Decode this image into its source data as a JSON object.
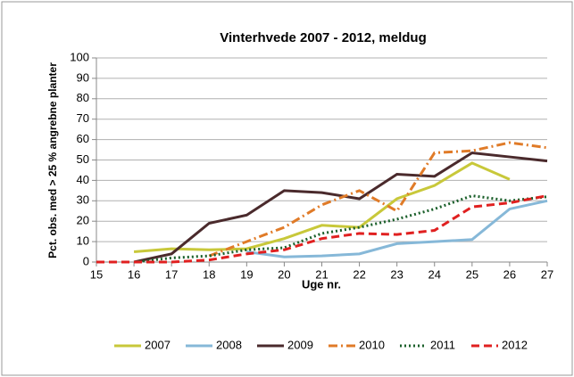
{
  "chart_data": {
    "type": "line",
    "title": "Vinterhvede 2007 - 2012, meldug",
    "x_label": "Uge nr.",
    "y_label": "Pct. obs. med > 25 % angrebne planter",
    "x": [
      15,
      16,
      17,
      18,
      19,
      20,
      21,
      22,
      23,
      24,
      25,
      26,
      27
    ],
    "xlim": [
      15,
      27
    ],
    "xticks": [
      15,
      16,
      17,
      18,
      19,
      20,
      21,
      22,
      23,
      24,
      25,
      26,
      27
    ],
    "ylim": [
      0,
      100
    ],
    "yticks": [
      0,
      10,
      20,
      30,
      40,
      50,
      60,
      70,
      80,
      90,
      100
    ],
    "grid": true,
    "legend": "bottom",
    "series": [
      {
        "name": "2007",
        "color": "#c8c83a",
        "dash": "solid",
        "values": [
          null,
          5,
          6.5,
          6,
          6.5,
          11.5,
          18,
          17,
          31,
          37.5,
          48.5,
          40.5,
          null
        ]
      },
      {
        "name": "2008",
        "color": "#86b8d8",
        "dash": "solid",
        "values": [
          null,
          null,
          null,
          null,
          5,
          2.5,
          3,
          4,
          9,
          10,
          11,
          26,
          30
        ]
      },
      {
        "name": "2009",
        "color": "#4a2a2c",
        "dash": "solid",
        "values": [
          null,
          0,
          4,
          19,
          23,
          35,
          34,
          31,
          43,
          42,
          53.5,
          51.5,
          49.5
        ]
      },
      {
        "name": "2010",
        "color": "#e07b28",
        "dash": "dashdot",
        "values": [
          null,
          null,
          null,
          3,
          10,
          17,
          28,
          35,
          25,
          53.5,
          54.5,
          58.5,
          56
        ]
      },
      {
        "name": "2011",
        "color": "#1a5f2a",
        "dash": "dotted",
        "values": [
          null,
          0,
          2,
          3,
          6,
          7,
          14,
          17,
          21,
          26,
          32.5,
          30,
          32
        ]
      },
      {
        "name": "2012",
        "color": "#e02020",
        "dash": "dashed",
        "values": [
          0,
          0,
          0,
          1,
          4,
          6,
          11.5,
          14,
          13.5,
          15.5,
          27,
          29,
          32.5
        ]
      }
    ]
  }
}
